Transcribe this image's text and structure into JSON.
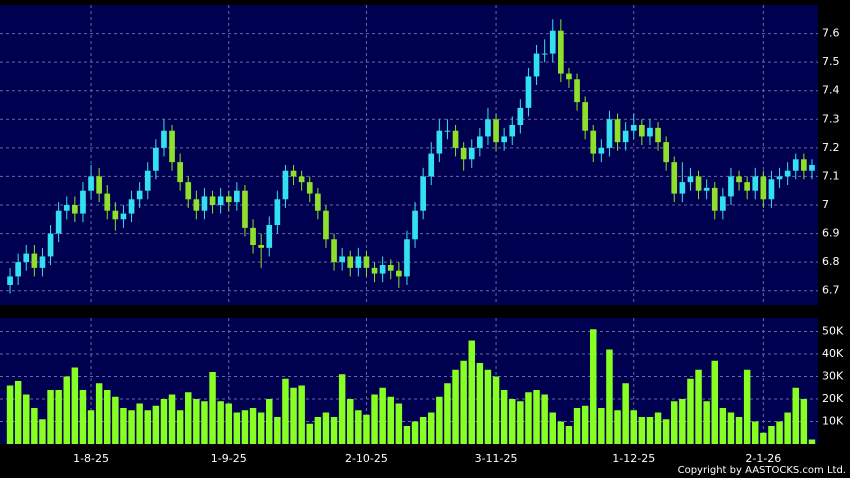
{
  "chart_data": [
    {
      "type": "candlestick",
      "categories": [
        null,
        null,
        null,
        null,
        null,
        null,
        null,
        null,
        null,
        null,
        "1-8-25",
        null,
        null,
        null,
        null,
        null,
        null,
        null,
        null,
        null,
        null,
        null,
        null,
        null,
        null,
        null,
        null,
        "1-9-25",
        null,
        null,
        null,
        null,
        null,
        null,
        null,
        null,
        null,
        null,
        null,
        null,
        null,
        null,
        null,
        null,
        "2-10-25",
        null,
        null,
        null,
        null,
        null,
        null,
        null,
        null,
        null,
        null,
        null,
        null,
        null,
        null,
        null,
        "3-11-25",
        null,
        null,
        null,
        null,
        null,
        null,
        null,
        null,
        null,
        null,
        null,
        null,
        null,
        null,
        null,
        null,
        "1-12-25",
        null,
        null,
        null,
        null,
        null,
        null,
        null,
        null,
        null,
        null,
        null,
        null,
        null,
        null,
        null,
        "2-1-26",
        null,
        null,
        null,
        null,
        null,
        null
      ],
      "open": [
        6.72,
        6.75,
        6.8,
        6.83,
        6.78,
        6.82,
        6.9,
        6.98,
        7.0,
        6.97,
        7.05,
        7.1,
        7.04,
        6.98,
        6.95,
        6.97,
        7.02,
        7.05,
        7.12,
        7.2,
        7.26,
        7.15,
        7.08,
        7.02,
        6.98,
        7.03,
        7.0,
        7.03,
        7.01,
        7.05,
        6.92,
        6.86,
        6.85,
        6.93,
        7.02,
        7.12,
        7.1,
        7.08,
        7.04,
        6.98,
        6.88,
        6.8,
        6.82,
        6.78,
        6.82,
        6.78,
        6.76,
        6.79,
        6.77,
        6.75,
        6.88,
        6.98,
        7.1,
        7.18,
        7.26,
        7.26,
        7.2,
        7.16,
        7.2,
        7.24,
        7.3,
        7.22,
        7.24,
        7.28,
        7.34,
        7.45,
        7.53,
        7.53,
        7.61,
        7.46,
        7.44,
        7.36,
        7.26,
        7.18,
        7.2,
        7.3,
        7.22,
        7.26,
        7.28,
        7.24,
        7.27,
        7.22,
        7.15,
        7.04,
        7.08,
        7.1,
        7.05,
        7.06,
        6.98,
        7.03,
        7.1,
        7.08,
        7.05,
        7.1,
        7.02,
        7.09,
        7.1,
        7.12,
        7.16,
        7.12
      ],
      "high": [
        6.78,
        6.83,
        6.86,
        6.86,
        6.85,
        6.93,
        7.01,
        7.03,
        7.03,
        7.08,
        7.14,
        7.13,
        7.07,
        7.01,
        7.0,
        7.05,
        7.08,
        7.15,
        7.23,
        7.3,
        7.28,
        7.18,
        7.1,
        7.05,
        7.06,
        7.05,
        7.06,
        7.05,
        7.08,
        7.07,
        6.95,
        6.9,
        6.96,
        7.05,
        7.14,
        7.14,
        7.12,
        7.1,
        7.06,
        7.0,
        6.9,
        6.85,
        6.84,
        6.85,
        6.84,
        6.8,
        6.82,
        6.81,
        6.8,
        6.91,
        7.01,
        7.13,
        7.22,
        7.3,
        7.3,
        7.28,
        7.22,
        7.23,
        7.27,
        7.34,
        7.32,
        7.27,
        7.31,
        7.37,
        7.48,
        7.56,
        7.58,
        7.65,
        7.65,
        7.48,
        7.46,
        7.38,
        7.28,
        7.23,
        7.33,
        7.32,
        7.29,
        7.32,
        7.3,
        7.3,
        7.29,
        7.24,
        7.17,
        7.15,
        7.13,
        7.12,
        7.09,
        7.08,
        7.06,
        7.13,
        7.12,
        7.1,
        7.13,
        7.12,
        7.12,
        7.13,
        7.15,
        7.18,
        7.18,
        7.16
      ],
      "low": [
        6.69,
        6.72,
        6.77,
        6.75,
        6.75,
        6.79,
        6.87,
        6.95,
        6.94,
        6.94,
        7.02,
        7.01,
        6.95,
        6.91,
        6.92,
        6.94,
        6.99,
        7.02,
        7.09,
        7.17,
        7.12,
        7.05,
        6.99,
        6.95,
        6.95,
        6.97,
        6.97,
        6.98,
        6.98,
        6.89,
        6.83,
        6.78,
        6.82,
        6.9,
        6.99,
        7.07,
        7.05,
        7.01,
        6.95,
        6.85,
        6.77,
        6.77,
        6.75,
        6.75,
        6.75,
        6.73,
        6.73,
        6.74,
        6.71,
        6.72,
        6.85,
        6.95,
        7.07,
        7.15,
        7.23,
        7.17,
        7.12,
        7.13,
        7.17,
        7.21,
        7.19,
        7.19,
        7.21,
        7.25,
        7.31,
        7.42,
        7.5,
        7.5,
        7.43,
        7.41,
        7.33,
        7.23,
        7.15,
        7.15,
        7.17,
        7.19,
        7.19,
        7.23,
        7.21,
        7.21,
        7.19,
        7.12,
        7.01,
        7.01,
        7.05,
        7.02,
        7.02,
        6.95,
        6.95,
        7.0,
        7.05,
        7.02,
        7.02,
        6.99,
        6.99,
        7.06,
        7.07,
        7.09,
        7.09,
        7.09
      ],
      "close": [
        6.75,
        6.8,
        6.83,
        6.78,
        6.82,
        6.9,
        6.98,
        7.0,
        6.97,
        7.05,
        7.1,
        7.04,
        6.98,
        6.95,
        6.97,
        7.02,
        7.05,
        7.12,
        7.2,
        7.26,
        7.15,
        7.08,
        7.02,
        6.98,
        7.03,
        7.0,
        7.03,
        7.01,
        7.05,
        6.92,
        6.86,
        6.85,
        6.93,
        7.02,
        7.12,
        7.1,
        7.08,
        7.04,
        6.98,
        6.88,
        6.8,
        6.82,
        6.78,
        6.82,
        6.78,
        6.76,
        6.79,
        6.77,
        6.75,
        6.88,
        6.98,
        7.1,
        7.18,
        7.26,
        7.26,
        7.2,
        7.16,
        7.2,
        7.24,
        7.3,
        7.22,
        7.24,
        7.28,
        7.34,
        7.45,
        7.53,
        7.53,
        7.61,
        7.46,
        7.44,
        7.36,
        7.26,
        7.18,
        7.2,
        7.3,
        7.22,
        7.26,
        7.28,
        7.24,
        7.27,
        7.22,
        7.15,
        7.04,
        7.08,
        7.1,
        7.05,
        7.06,
        6.98,
        7.03,
        7.1,
        7.08,
        7.05,
        7.1,
        7.02,
        7.09,
        7.1,
        7.12,
        7.16,
        7.12,
        7.14
      ],
      "up_color": "#33e0f0",
      "down_color": "#8ee02a",
      "ylim": [
        6.65,
        7.7
      ],
      "yticks": [
        6.7,
        6.8,
        6.9,
        7,
        7.1,
        7.2,
        7.3,
        7.4,
        7.5,
        7.6
      ],
      "grid": true
    },
    {
      "type": "bar",
      "color": "#88ff22",
      "values": [
        26000,
        28000,
        22000,
        16000,
        11000,
        24000,
        24000,
        30000,
        34000,
        24000,
        15000,
        27000,
        24000,
        21000,
        16000,
        15000,
        18000,
        15000,
        17000,
        20000,
        22000,
        15000,
        23000,
        20000,
        19000,
        32000,
        19000,
        18000,
        14000,
        15000,
        16000,
        14000,
        20000,
        12000,
        29000,
        25000,
        26000,
        9000,
        12000,
        14000,
        12000,
        31000,
        20000,
        15000,
        13000,
        22000,
        25000,
        21000,
        18000,
        8000,
        10000,
        12000,
        14000,
        21000,
        27000,
        33000,
        37000,
        46000,
        36000,
        33000,
        30000,
        24000,
        20000,
        19000,
        23000,
        24000,
        22000,
        14000,
        10000,
        8000,
        16000,
        17000,
        51000,
        16000,
        42000,
        15000,
        27000,
        15000,
        12000,
        12000,
        14000,
        11000,
        19000,
        20000,
        29000,
        33000,
        19000,
        37000,
        16000,
        14000,
        12000,
        33000,
        10000,
        5000,
        8000,
        10000,
        14000,
        25000,
        20000,
        2000
      ],
      "ylim": [
        0,
        56000
      ],
      "yticks": [
        {
          "value": 10000,
          "label": "10K"
        },
        {
          "value": 20000,
          "label": "20K"
        },
        {
          "value": 30000,
          "label": "30K"
        },
        {
          "value": 40000,
          "label": "40K"
        },
        {
          "value": 50000,
          "label": "50K"
        }
      ],
      "grid": true
    },
    {
      "type": "note",
      "text": "Copyright by AASTOCKS.com Ltd."
    }
  ]
}
